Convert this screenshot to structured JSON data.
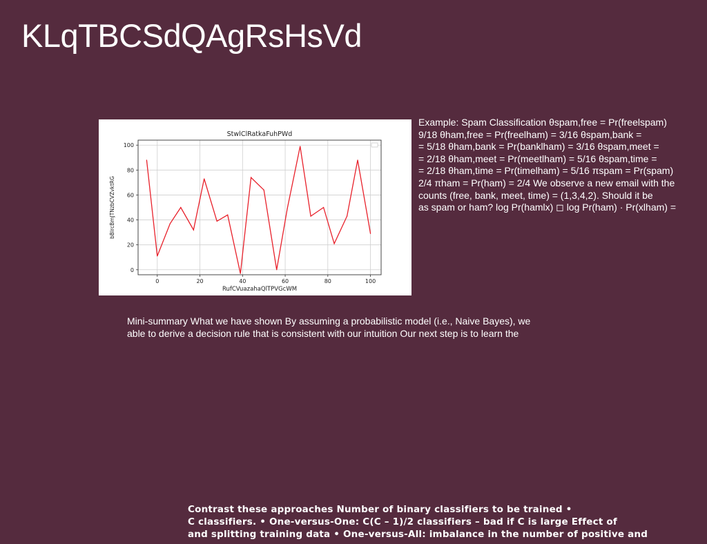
{
  "slide": {
    "title": "KLqTBCSdQAgRsHsVd"
  },
  "example": {
    "lines": [
      "Example: Spam Classification θspam,free = Pr(freelspam)",
      "9/18 θham,free = Pr(freelham) = 3/16 θspam,bank =",
      "= 5/18 θham,bank = Pr(banklham) = 3/16 θspam,meet =",
      "= 2/18 θham,meet = Pr(meetlham) = 5/16 θspam,time =",
      "= 2/18 θham,time = Pr(timelham) = 5/16 πspam = Pr(spam)",
      "2/4 πham = Pr(ham) = 2/4 We observe a new email with the",
      "counts (free, bank, meet, time) = (1,3,4,2). Should it be",
      "as spam or ham? log Pr(hamlx) ◻ log Pr(ham) · Pr(xlham) ="
    ]
  },
  "summary": {
    "lines": [
      "Mini-summary What we have shown By assuming a probabilistic model (i.e., Naive Bayes), we",
      "able to derive a decision rule that is consistent with our intuition Our next step is to learn the"
    ]
  },
  "contrast": {
    "lines": [
      "Contrast these approaches Number of binary classifiers to be trained •",
      "C classifiers. • One-versus-One: C(C – 1)/2 classifiers – bad if C is large Effect of",
      "and splitting training data • One-versus-All: imbalance in the number of positive and"
    ]
  },
  "chart_data": {
    "type": "line",
    "title": "StwlClRatkaFuhPWd",
    "xlabel": "RufCVuazahaQlTPVGcWM",
    "ylabel": "bBlrcBmJTNzbCVZvktRG",
    "x": [
      -5,
      0,
      6,
      11,
      17,
      22,
      28,
      33,
      39,
      44,
      50,
      56,
      61,
      67,
      72,
      78,
      83,
      89,
      94,
      100
    ],
    "series": [
      {
        "color": "#e8202a",
        "values": [
          88,
          11,
          37,
          50,
          32,
          73,
          39,
          44,
          -3,
          74,
          64,
          0,
          49,
          99,
          43,
          50,
          21,
          43,
          88,
          29
        ]
      }
    ],
    "xticks": [
      0,
      20,
      40,
      60,
      80,
      100
    ],
    "yticks": [
      0,
      20,
      40,
      60,
      80,
      100
    ],
    "xlim": [
      -9,
      105
    ],
    "ylim": [
      -4,
      104
    ],
    "grid": true,
    "legend": "top-right"
  }
}
